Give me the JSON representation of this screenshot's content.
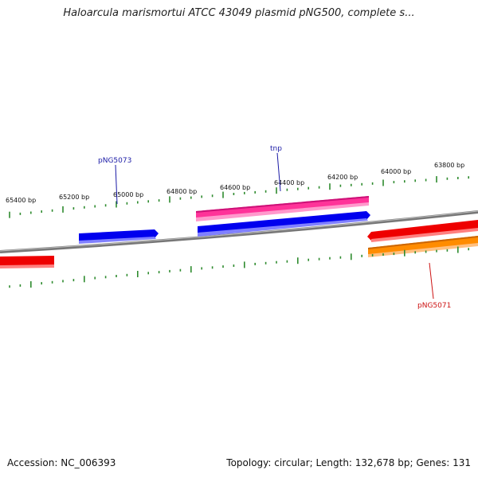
{
  "title": "Haloarcula marismortui ATCC 43049 plasmid pNG500, complete s...",
  "footer": {
    "accession": "Accession: NC_006393",
    "summary": "Topology: circular; Length: 132,678 bp; Genes: 131"
  },
  "map": {
    "ruler_labels": [
      "65400 bp",
      "65200 bp",
      "65000 bp",
      "64800 bp",
      "64600 bp",
      "64400 bp",
      "64200 bp",
      "64000 bp",
      "63800 bp"
    ],
    "gene_labels": [
      {
        "name": "pNG5073",
        "color": "#1a1aa6"
      },
      {
        "name": "tnp",
        "color": "#1a1aa6"
      },
      {
        "name": "pNG5071",
        "color": "#cc1111"
      }
    ],
    "colors": {
      "tick": "#2e8b2e",
      "backbone": "#808080",
      "blue": "#0000ee",
      "pink": "#ff3399",
      "red": "#ee0000",
      "orange": "#ff8c00"
    }
  }
}
